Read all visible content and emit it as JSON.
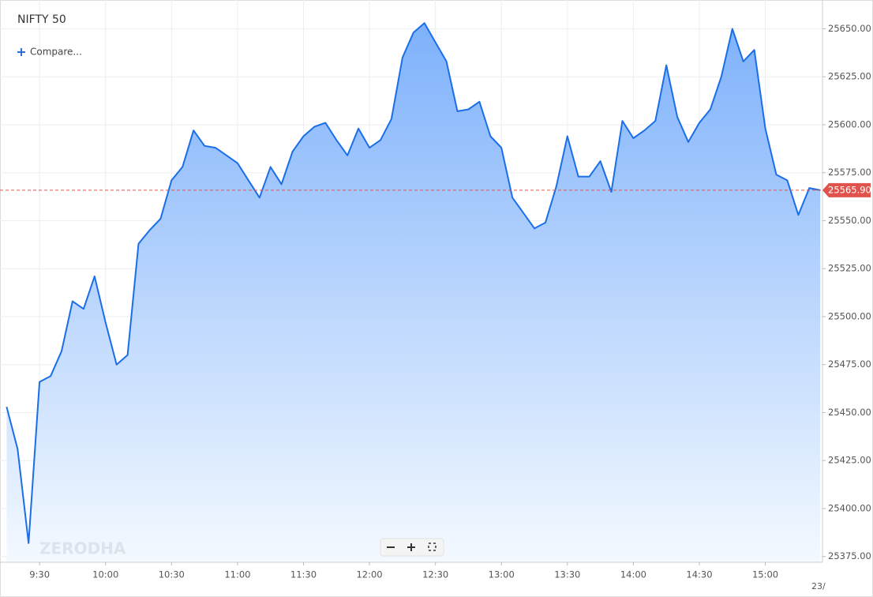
{
  "chart_data": {
    "type": "area",
    "title": "NIFTY 50",
    "compare_label": "Compare...",
    "watermark": "ZERODHA",
    "date_label": "23/",
    "color": "#1a6ee8",
    "grid": true,
    "x": [
      "09:15",
      "09:20",
      "09:25",
      "09:30",
      "09:35",
      "09:40",
      "09:45",
      "09:50",
      "09:55",
      "10:00",
      "10:05",
      "10:10",
      "10:15",
      "10:20",
      "10:25",
      "10:30",
      "10:35",
      "10:40",
      "10:45",
      "10:50",
      "10:55",
      "11:00",
      "11:05",
      "11:10",
      "11:15",
      "11:20",
      "11:25",
      "11:30",
      "11:35",
      "11:40",
      "11:45",
      "11:50",
      "11:55",
      "12:00",
      "12:05",
      "12:10",
      "12:15",
      "12:20",
      "12:25",
      "12:30",
      "12:35",
      "12:40",
      "12:45",
      "12:50",
      "12:55",
      "13:00",
      "13:05",
      "13:10",
      "13:15",
      "13:20",
      "13:25",
      "13:30",
      "13:35",
      "13:40",
      "13:45",
      "13:50",
      "13:55",
      "14:00",
      "14:05",
      "14:10",
      "14:15",
      "14:20",
      "14:25",
      "14:30",
      "14:35",
      "14:40",
      "14:45",
      "14:50",
      "14:55",
      "15:00",
      "15:05",
      "15:10",
      "15:15",
      "15:20",
      "15:25"
    ],
    "values": [
      25453,
      25431,
      25382,
      25466,
      25469,
      25482,
      25508,
      25504,
      25521,
      25497,
      25475,
      25480,
      25538,
      25545,
      25551,
      25571,
      25578,
      25597,
      25589,
      25588,
      25584,
      25580,
      25571,
      25562,
      25578,
      25569,
      25586,
      25594,
      25599,
      25601,
      25592,
      25584,
      25598,
      25588,
      25592,
      25603,
      25635,
      25648,
      25653,
      25643,
      25633,
      25607,
      25608,
      25612,
      25594,
      25588,
      25562,
      25554,
      25546,
      25549,
      25568,
      25594,
      25573,
      25573,
      25581,
      25565,
      25602,
      25593,
      25597,
      25602,
      25631,
      25604,
      25591,
      25601,
      25608,
      25625,
      25650,
      25633,
      25639,
      25598,
      25574,
      25571,
      25553,
      25567,
      25565.9
    ],
    "last_value_label": "25565.90",
    "xlim": [
      "09:12",
      "15:26"
    ],
    "xticks": [
      {
        "value": "09:30",
        "label": "9:30"
      },
      {
        "value": "10:00",
        "label": "10:00"
      },
      {
        "value": "10:30",
        "label": "10:30"
      },
      {
        "value": "11:00",
        "label": "11:00"
      },
      {
        "value": "11:30",
        "label": "11:30"
      },
      {
        "value": "12:00",
        "label": "12:00"
      },
      {
        "value": "12:30",
        "label": "12:30"
      },
      {
        "value": "13:00",
        "label": "13:00"
      },
      {
        "value": "13:30",
        "label": "13:30"
      },
      {
        "value": "14:00",
        "label": "14:00"
      },
      {
        "value": "14:30",
        "label": "14:30"
      },
      {
        "value": "15:00",
        "label": "15:00"
      }
    ],
    "ylim": [
      25372,
      25665
    ],
    "yticks": [
      {
        "value": 25375,
        "label": "25375.00"
      },
      {
        "value": 25400,
        "label": "25400.00"
      },
      {
        "value": 25425,
        "label": "25425.00"
      },
      {
        "value": 25450,
        "label": "25450.00"
      },
      {
        "value": 25475,
        "label": "25475.00"
      },
      {
        "value": 25500,
        "label": "25500.00"
      },
      {
        "value": 25525,
        "label": "25525.00"
      },
      {
        "value": 25550,
        "label": "25550.00"
      },
      {
        "value": 25575,
        "label": "25575.00"
      },
      {
        "value": 25600,
        "label": "25600.00"
      },
      {
        "value": 25625,
        "label": "25625.00"
      },
      {
        "value": 25650,
        "label": "25650.00"
      }
    ]
  }
}
